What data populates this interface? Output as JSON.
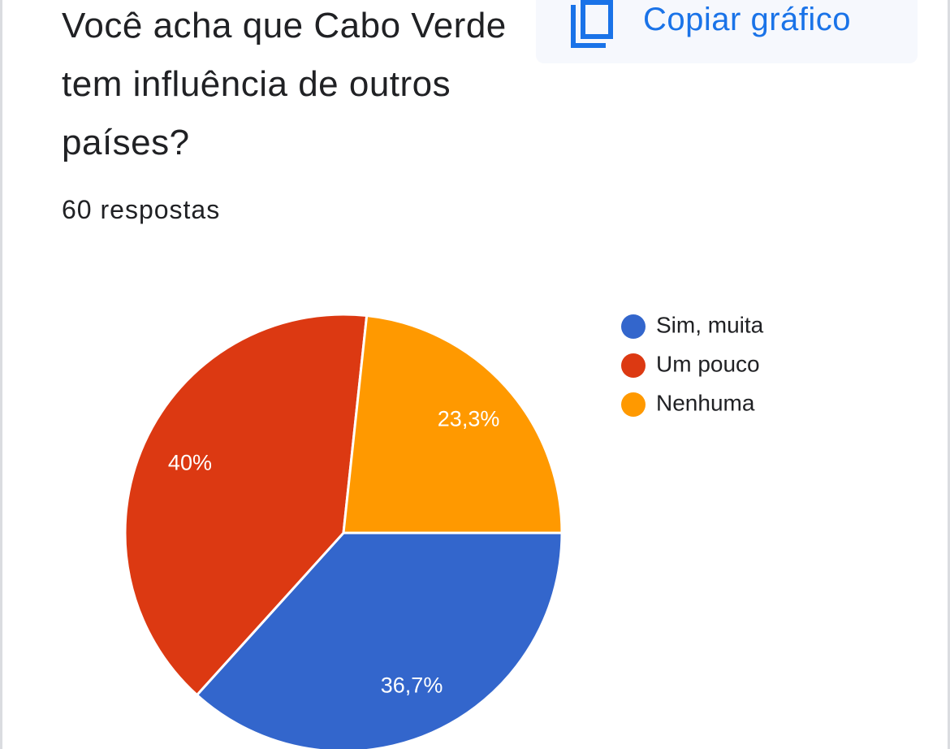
{
  "chart_data": {
    "type": "pie",
    "title": "Você acha que Cabo Verde tem influência de outros países?",
    "subtitle": "60 respostas",
    "categories": [
      "Sim, muita",
      "Um pouco",
      "Nenhuma"
    ],
    "values": [
      36.7,
      40,
      23.3
    ],
    "value_labels": [
      "36,7%",
      "40%",
      "23,3%"
    ],
    "colors": [
      "#3366cc",
      "#dc3912",
      "#ff9900"
    ],
    "legend": "right"
  },
  "button": {
    "label": "Copiar gráfico"
  }
}
